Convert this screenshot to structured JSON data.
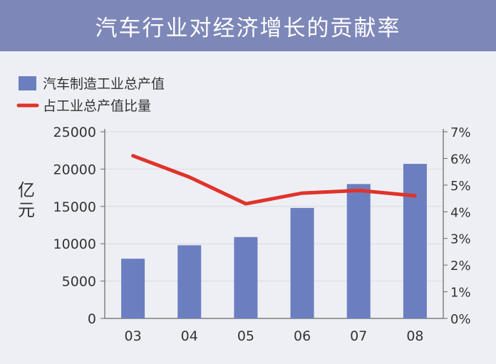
{
  "title": "汽车行业对经济增长的贡献率",
  "colors": {
    "background": "#eeeff5",
    "title_bar": "#7d87b8",
    "bar": "#6b7fc0",
    "line": "#e0332a",
    "axis": "#666666",
    "grid": "#d9dae2"
  },
  "chart_data": {
    "type": "bar",
    "categories": [
      "03",
      "04",
      "05",
      "06",
      "07",
      "08"
    ],
    "series": [
      {
        "name": "汽车制造工业总产值",
        "type": "bar",
        "axis": "left",
        "values": [
          8000,
          9800,
          10900,
          14800,
          18000,
          20700
        ]
      },
      {
        "name": "占工业总产值比量",
        "type": "line",
        "axis": "right",
        "values": [
          6.1,
          5.3,
          4.3,
          4.7,
          4.8,
          4.6
        ]
      }
    ],
    "ylabel": "亿元",
    "y_left": {
      "min": 0,
      "max": 25000,
      "ticks": [
        0,
        5000,
        10000,
        15000,
        20000,
        25000
      ],
      "tick_labels": [
        "0",
        "5000",
        "10000",
        "15000",
        "20000",
        "25000"
      ]
    },
    "y_right": {
      "min": 0,
      "max": 7,
      "ticks": [
        0,
        1,
        2,
        3,
        4,
        5,
        6,
        7
      ],
      "tick_labels": [
        "0%",
        "1%",
        "2%",
        "3%",
        "4%",
        "5%",
        "6%",
        "7%"
      ]
    },
    "grid": true,
    "legend_position": "top-left"
  }
}
